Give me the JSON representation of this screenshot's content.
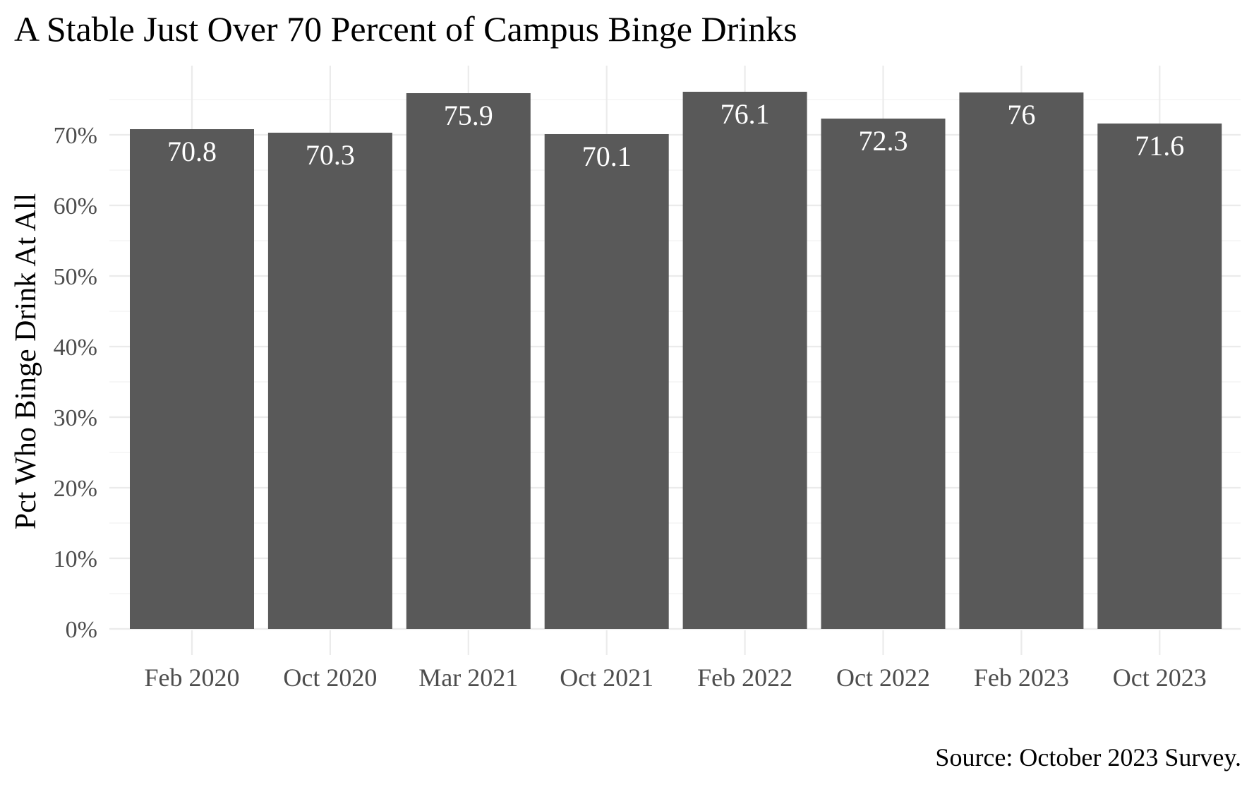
{
  "chart_data": {
    "type": "bar",
    "title": "A Stable Just Over 70 Percent of Campus Binge Drinks",
    "xlabel": "",
    "ylabel": "Pct Who Binge Drink At All",
    "caption": "Source: October 2023 Survey.",
    "categories": [
      "Feb 2020",
      "Oct 2020",
      "Mar 2021",
      "Oct 2021",
      "Feb 2022",
      "Oct 2022",
      "Feb 2023",
      "Oct 2023"
    ],
    "values": [
      70.8,
      70.3,
      75.9,
      70.1,
      76.1,
      72.3,
      76,
      71.6
    ],
    "data_labels": [
      "70.8",
      "70.3",
      "75.9",
      "70.1",
      "76.1",
      "72.3",
      "76",
      "71.6"
    ],
    "ylim": [
      0,
      80
    ],
    "yticks": [
      0,
      10,
      20,
      30,
      40,
      50,
      60,
      70
    ],
    "ytick_labels": [
      "0%",
      "10%",
      "20%",
      "30%",
      "40%",
      "50%",
      "60%",
      "70%"
    ],
    "grid": true,
    "legend": "none",
    "bar_color": "#595959",
    "label_color": "#ffffff",
    "grid_color": "#ebebeb"
  }
}
